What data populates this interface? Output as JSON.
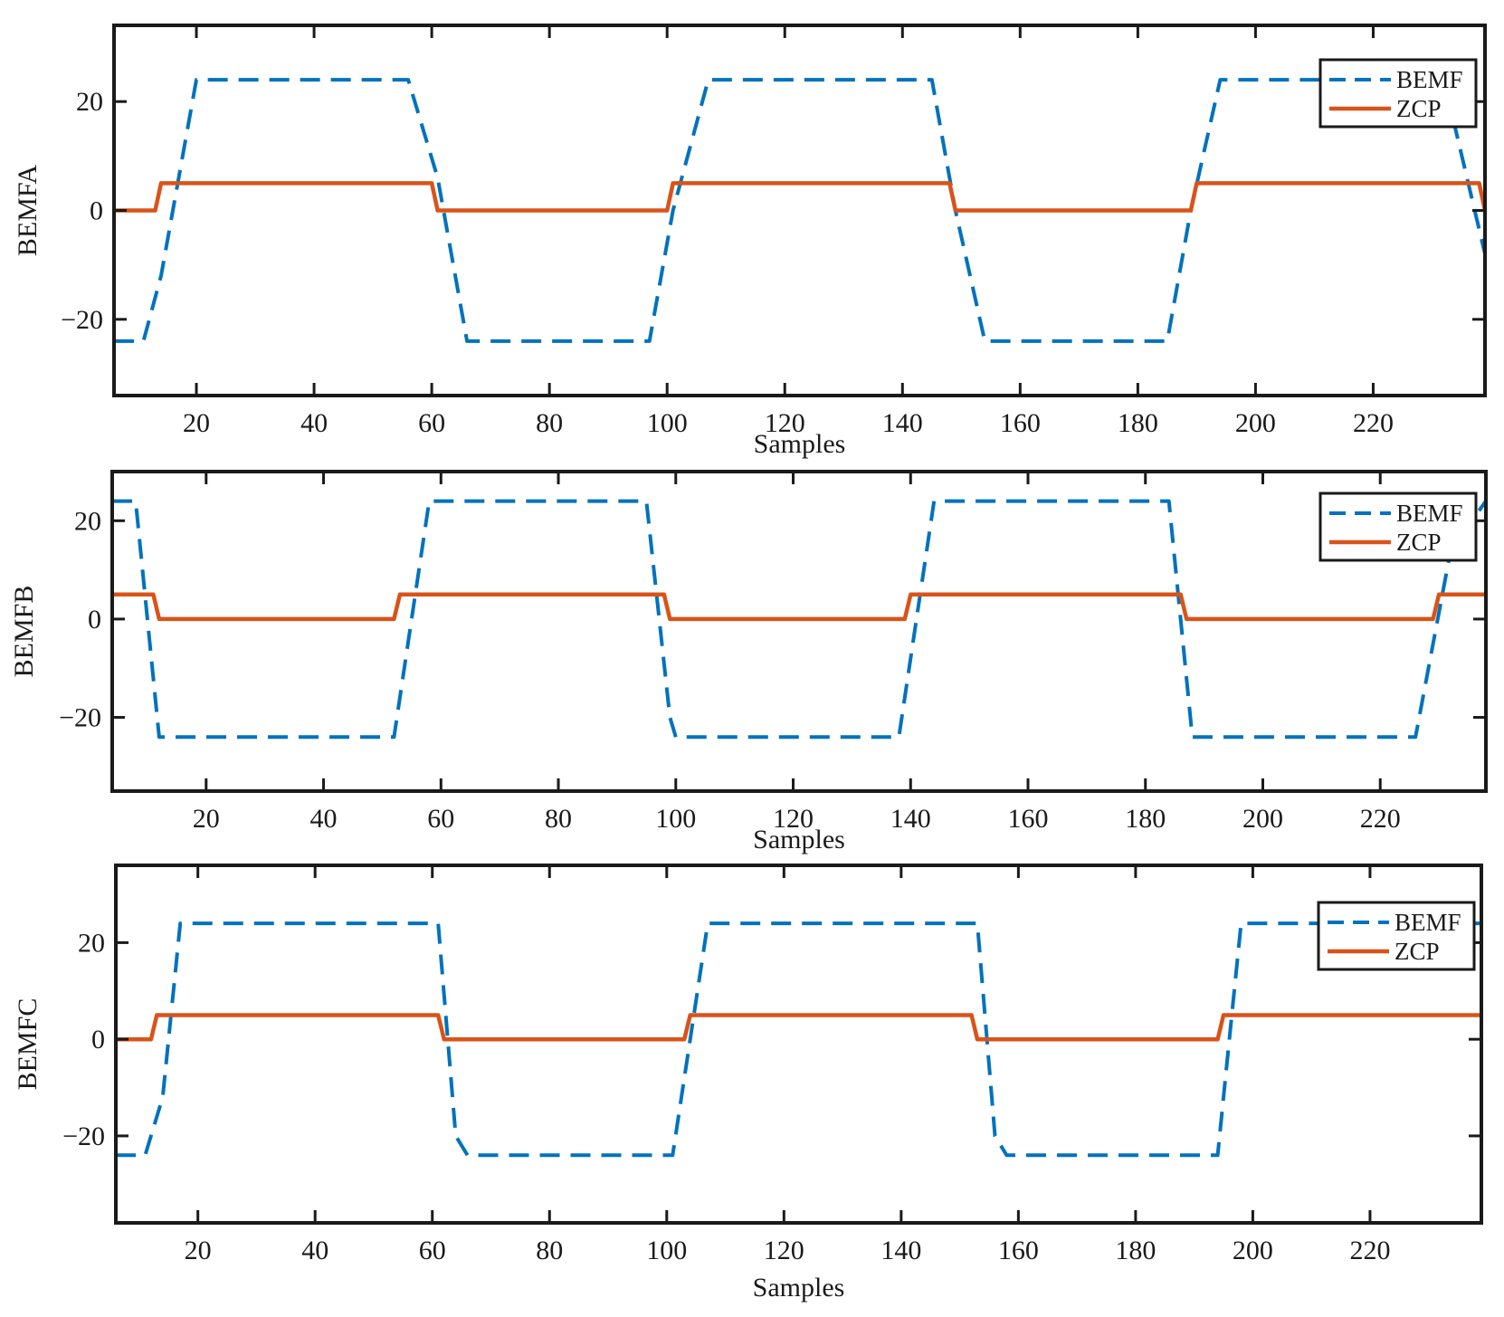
{
  "figure": {
    "panels": [
      {
        "ylabel": "BEMFA",
        "xlabel": "Samples",
        "legend": [
          "BEMF",
          "ZCP"
        ]
      },
      {
        "ylabel": "BEMFB",
        "xlabel": "Samples",
        "legend": [
          "BEMF",
          "ZCP"
        ]
      },
      {
        "ylabel": "BEMFC",
        "xlabel": "Samples",
        "legend": [
          "BEMF",
          "ZCP"
        ]
      }
    ]
  },
  "colors": {
    "bemf": "#0072BD",
    "zcp": "#D95319",
    "axes": "#1a1a1a"
  },
  "chart_data": [
    {
      "type": "line",
      "xlabel": "Samples",
      "ylabel": "BEMFA",
      "xlim": [
        6,
        239
      ],
      "ylim": [
        -34,
        34
      ],
      "xticks": [
        20,
        40,
        60,
        80,
        100,
        120,
        140,
        160,
        180,
        200,
        220
      ],
      "yticks": [
        -20,
        0,
        20
      ],
      "ytick_labels": [
        "−20",
        "0",
        "20"
      ],
      "legend_position": "top-right",
      "series": [
        {
          "name": "BEMF",
          "style": "dashed",
          "x": [
            6,
            11,
            14,
            20,
            56,
            61,
            66,
            97,
            101,
            107,
            145,
            149,
            154,
            185,
            189,
            194,
            232,
            239
          ],
          "y": [
            -24,
            -24,
            -12,
            24,
            24,
            6,
            -24,
            -24,
            0,
            24,
            24,
            0,
            -24,
            -24,
            0,
            24,
            24,
            -8
          ]
        },
        {
          "name": "ZCP",
          "style": "solid",
          "x": [
            6,
            13,
            14,
            60,
            61,
            100,
            101,
            148,
            149,
            189,
            190,
            238,
            239
          ],
          "y": [
            0,
            0,
            5,
            5,
            0,
            0,
            5,
            5,
            0,
            0,
            5,
            5,
            0
          ]
        }
      ]
    },
    {
      "type": "line",
      "xlabel": "Samples",
      "ylabel": "BEMFB",
      "xlim": [
        4,
        238
      ],
      "ylim": [
        -35,
        30
      ],
      "xticks": [
        20,
        40,
        60,
        80,
        100,
        120,
        140,
        160,
        180,
        200,
        220
      ],
      "yticks": [
        -20,
        0,
        20
      ],
      "ytick_labels": [
        "−20",
        "0",
        "20"
      ],
      "legend_position": "top-right",
      "series": [
        {
          "name": "BEMF",
          "style": "dashed",
          "x": [
            4,
            8,
            12,
            52,
            58,
            95,
            99,
            100,
            138,
            144,
            184,
            188,
            226,
            232,
            238
          ],
          "y": [
            24,
            24,
            -24,
            -24,
            24,
            24,
            -20,
            -24,
            -24,
            24,
            24,
            -24,
            -24,
            14,
            24
          ]
        },
        {
          "name": "ZCP",
          "style": "solid",
          "x": [
            4,
            11,
            12,
            52,
            53,
            98,
            99,
            139,
            140,
            186,
            187,
            229,
            230,
            238
          ],
          "y": [
            5,
            5,
            0,
            0,
            5,
            5,
            0,
            0,
            5,
            5,
            0,
            0,
            5,
            5
          ]
        }
      ]
    },
    {
      "type": "line",
      "xlabel": "Samples",
      "ylabel": "BEMFC",
      "xlim": [
        6,
        239
      ],
      "ylim": [
        -38,
        36
      ],
      "xticks": [
        20,
        40,
        60,
        80,
        100,
        120,
        140,
        160,
        180,
        200,
        220
      ],
      "yticks": [
        -20,
        0,
        20
      ],
      "ytick_labels": [
        "−20",
        "0",
        "20"
      ],
      "legend_position": "top-right",
      "series": [
        {
          "name": "BEMF",
          "style": "dashed",
          "x": [
            6,
            11,
            14,
            17,
            61,
            64,
            66,
            101,
            104,
            107,
            153,
            156,
            158,
            194,
            196,
            198,
            239
          ],
          "y": [
            -24,
            -24,
            -12,
            24,
            24,
            -20,
            -24,
            -24,
            0,
            24,
            24,
            -20,
            -24,
            -24,
            0,
            24,
            24
          ]
        },
        {
          "name": "ZCP",
          "style": "solid",
          "x": [
            6,
            12,
            13,
            61,
            62,
            103,
            104,
            152,
            153,
            194,
            195,
            239
          ],
          "y": [
            0,
            0,
            5,
            5,
            0,
            0,
            5,
            5,
            0,
            0,
            5,
            5
          ]
        }
      ]
    }
  ]
}
